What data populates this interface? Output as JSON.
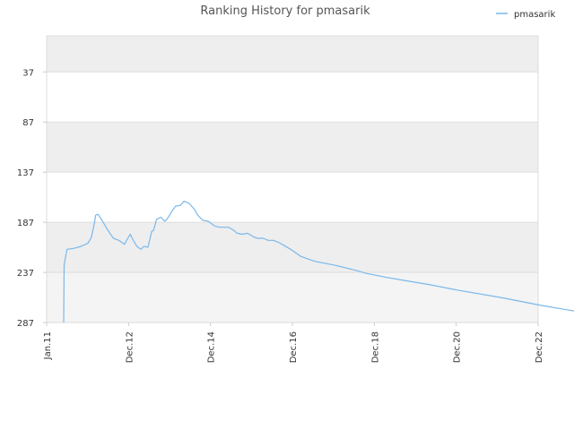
{
  "chart_data": {
    "type": "line",
    "title": "Ranking History for pmasarik",
    "xlabel": "",
    "ylabel": "",
    "x_ticks": [
      "Jan.11",
      "Dec.12",
      "Dec.14",
      "Dec.16",
      "Dec.18",
      "Dec.20",
      "Dec.22"
    ],
    "y_ticks": [
      37,
      87,
      137,
      187,
      237,
      287
    ],
    "ylim": [
      287,
      1
    ],
    "y_inverted": true,
    "legend": {
      "position": "top-right"
    },
    "grid": true,
    "colors": {
      "series": "#7ab8ea",
      "band_dark": "#eeeeee",
      "band_light": "#f4f4f4",
      "grid": "#dddddd"
    },
    "series": [
      {
        "name": "pmasarik",
        "points": [
          {
            "x": "2011-06-01",
            "y": 287
          },
          {
            "x": "2011-06-05",
            "y": 230
          },
          {
            "x": "2011-06-20",
            "y": 220
          },
          {
            "x": "2011-07-01",
            "y": 214
          },
          {
            "x": "2011-09-01",
            "y": 213
          },
          {
            "x": "2011-11-01",
            "y": 211
          },
          {
            "x": "2012-01-01",
            "y": 208
          },
          {
            "x": "2012-02-01",
            "y": 202
          },
          {
            "x": "2012-03-01",
            "y": 187
          },
          {
            "x": "2012-03-10",
            "y": 180
          },
          {
            "x": "2012-04-01",
            "y": 179
          },
          {
            "x": "2012-05-15",
            "y": 187
          },
          {
            "x": "2012-06-15",
            "y": 193
          },
          {
            "x": "2012-07-15",
            "y": 198
          },
          {
            "x": "2012-08-15",
            "y": 203
          },
          {
            "x": "2012-10-01",
            "y": 205
          },
          {
            "x": "2012-11-20",
            "y": 209
          },
          {
            "x": "2012-12-20",
            "y": 203
          },
          {
            "x": "2013-01-10",
            "y": 199
          },
          {
            "x": "2013-02-01",
            "y": 204
          },
          {
            "x": "2013-03-10",
            "y": 211
          },
          {
            "x": "2013-04-15",
            "y": 214
          },
          {
            "x": "2013-05-10",
            "y": 211
          },
          {
            "x": "2013-06-15",
            "y": 212
          },
          {
            "x": "2013-07-01",
            "y": 205
          },
          {
            "x": "2013-07-20",
            "y": 196
          },
          {
            "x": "2013-08-05",
            "y": 195
          },
          {
            "x": "2013-09-01",
            "y": 184
          },
          {
            "x": "2013-10-10",
            "y": 182
          },
          {
            "x": "2013-11-10",
            "y": 186
          },
          {
            "x": "2013-12-01",
            "y": 184
          },
          {
            "x": "2014-01-15",
            "y": 176
          },
          {
            "x": "2014-02-15",
            "y": 171
          },
          {
            "x": "2014-04-01",
            "y": 170
          },
          {
            "x": "2014-05-01",
            "y": 166
          },
          {
            "x": "2014-06-15",
            "y": 168
          },
          {
            "x": "2014-08-01",
            "y": 174
          },
          {
            "x": "2014-09-01",
            "y": 180
          },
          {
            "x": "2014-10-15",
            "y": 185
          },
          {
            "x": "2014-12-01",
            "y": 186
          },
          {
            "x": "2015-02-01",
            "y": 191
          },
          {
            "x": "2015-03-15",
            "y": 192
          },
          {
            "x": "2015-06-01",
            "y": 192
          },
          {
            "x": "2015-07-15",
            "y": 195
          },
          {
            "x": "2015-08-15",
            "y": 198
          },
          {
            "x": "2015-10-01",
            "y": 199
          },
          {
            "x": "2015-11-15",
            "y": 198
          },
          {
            "x": "2016-01-15",
            "y": 202
          },
          {
            "x": "2016-02-15",
            "y": 203
          },
          {
            "x": "2016-04-01",
            "y": 203
          },
          {
            "x": "2016-05-15",
            "y": 205
          },
          {
            "x": "2016-07-01",
            "y": 205
          },
          {
            "x": "2016-08-15",
            "y": 207
          },
          {
            "x": "2016-10-01",
            "y": 210
          },
          {
            "x": "2016-12-01",
            "y": 214
          },
          {
            "x": "2017-03-01",
            "y": 221
          },
          {
            "x": "2017-07-01",
            "y": 226
          },
          {
            "x": "2018-01-01",
            "y": 230
          },
          {
            "x": "2018-07-01",
            "y": 235
          },
          {
            "x": "2018-10-01",
            "y": 238
          },
          {
            "x": "2019-04-01",
            "y": 242
          },
          {
            "x": "2019-09-01",
            "y": 245
          },
          {
            "x": "2020-04-01",
            "y": 249
          },
          {
            "x": "2021-01-01",
            "y": 255
          },
          {
            "x": "2022-01-01",
            "y": 262
          },
          {
            "x": "2023-01-01",
            "y": 270
          },
          {
            "x": "2024-01-01",
            "y": 277
          },
          {
            "x": "2024-12-01",
            "y": 284
          },
          {
            "x": "2025-04-01",
            "y": 287
          }
        ]
      }
    ]
  }
}
